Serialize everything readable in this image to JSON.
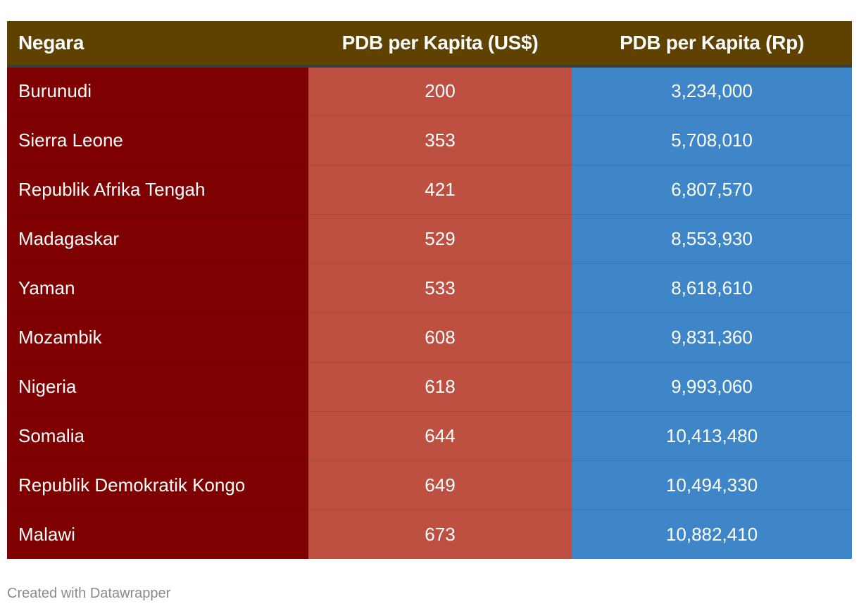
{
  "colors": {
    "header_bg": "#5f4100",
    "country_col": "#7e0000",
    "usd_col": "#bd5040",
    "rp_col": "#3e86c7"
  },
  "chart_data": {
    "type": "table",
    "columns": [
      "Negara",
      "PDB per Kapita (US$)",
      "PDB per Kapita (Rp)"
    ],
    "rows": [
      [
        "Burunudi",
        "200",
        "3,234,000"
      ],
      [
        "Sierra Leone",
        "353",
        "5,708,010"
      ],
      [
        "Republik Afrika Tengah",
        "421",
        "6,807,570"
      ],
      [
        "Madagaskar",
        "529",
        "8,553,930"
      ],
      [
        "Yaman",
        "533",
        "8,618,610"
      ],
      [
        "Mozambik",
        "608",
        "9,831,360"
      ],
      [
        "Nigeria",
        "618",
        "9,993,060"
      ],
      [
        "Somalia",
        "644",
        "10,413,480"
      ],
      [
        "Republik Demokratik Kongo",
        "649",
        "10,494,330"
      ],
      [
        "Malawi",
        "673",
        "10,882,410"
      ]
    ]
  },
  "footer": {
    "credit": "Created with Datawrapper"
  }
}
